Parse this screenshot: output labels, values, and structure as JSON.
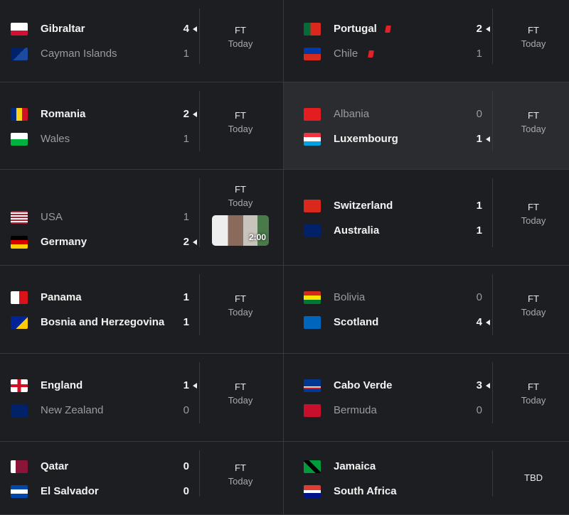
{
  "matches": [
    {
      "teams": [
        {
          "name": "Gibraltar",
          "score": 4
        },
        {
          "name": "Cayman Islands",
          "score": 1
        }
      ],
      "status": "FT",
      "time": "Today"
    },
    {
      "teams": [
        {
          "name": "Portugal",
          "score": 2,
          "red_card": true
        },
        {
          "name": "Chile",
          "score": 1,
          "red_card": true
        }
      ],
      "status": "FT",
      "time": "Today"
    },
    {
      "teams": [
        {
          "name": "Romania",
          "score": 2
        },
        {
          "name": "Wales",
          "score": 1
        }
      ],
      "status": "FT",
      "time": "Today"
    },
    {
      "teams": [
        {
          "name": "Albania",
          "score": 0
        },
        {
          "name": "Luxembourg",
          "score": 1
        }
      ],
      "status": "FT",
      "time": "Today",
      "selected": true
    },
    {
      "teams": [
        {
          "name": "USA",
          "score": 1
        },
        {
          "name": "Germany",
          "score": 2
        }
      ],
      "status": "FT",
      "time": "Today",
      "highlight": "2:00"
    },
    {
      "teams": [
        {
          "name": "Switzerland",
          "score": 1
        },
        {
          "name": "Australia",
          "score": 1
        }
      ],
      "status": "FT",
      "time": "Today"
    },
    {
      "teams": [
        {
          "name": "Panama",
          "score": 1
        },
        {
          "name": "Bosnia and Herzegovina",
          "score": 1
        }
      ],
      "status": "FT",
      "time": "Today"
    },
    {
      "teams": [
        {
          "name": "Bolivia",
          "score": 0
        },
        {
          "name": "Scotland",
          "score": 4
        }
      ],
      "status": "FT",
      "time": "Today"
    },
    {
      "teams": [
        {
          "name": "England",
          "score": 1
        },
        {
          "name": "New Zealand",
          "score": 0
        }
      ],
      "status": "FT",
      "time": "Today"
    },
    {
      "teams": [
        {
          "name": "Cabo Verde",
          "score": 3
        },
        {
          "name": "Bermuda",
          "score": 0
        }
      ],
      "status": "FT",
      "time": "Today"
    },
    {
      "teams": [
        {
          "name": "Qatar",
          "score": 0
        },
        {
          "name": "El Salvador",
          "score": 0
        }
      ],
      "status": "FT",
      "time": "Today"
    },
    {
      "teams": [
        {
          "name": "Jamaica"
        },
        {
          "name": "South Africa"
        }
      ],
      "status": "TBD"
    }
  ]
}
